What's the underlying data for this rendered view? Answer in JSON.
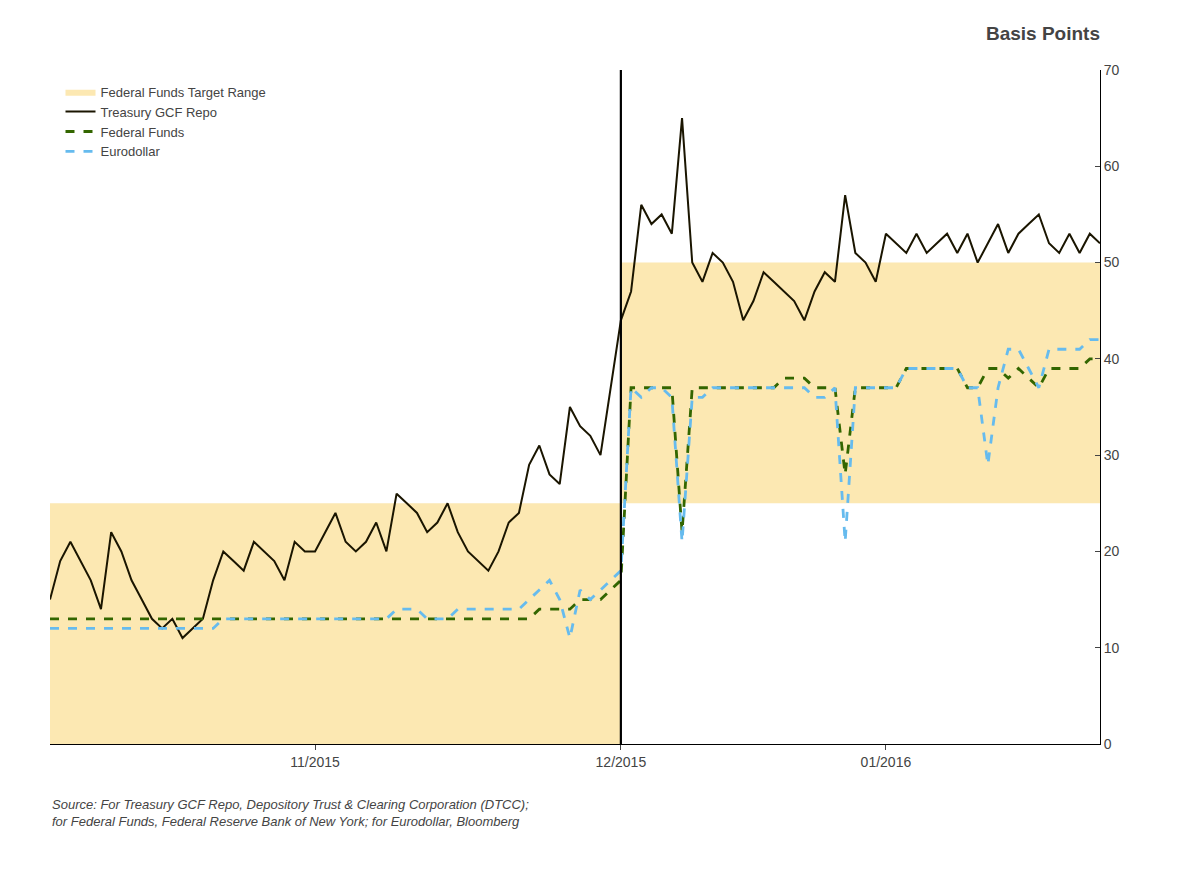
{
  "chart_data": {
    "type": "line",
    "title": "Basis Points",
    "annotations": [
      "Source: For Treasury GCF Repo, Depository Trust & Clearing Corporation (DTCC);\nfor Federal Funds, Federal Reserve Bank of New York; for Eurodollar, Bloomberg"
    ],
    "categories": [
      null,
      null,
      null,
      null,
      null,
      null,
      null,
      null,
      null,
      null,
      null,
      null,
      null,
      null,
      null,
      null,
      null,
      null,
      null,
      null,
      null,
      null,
      null,
      null,
      null,
      null,
      "11/2015",
      null,
      null,
      null,
      null,
      null,
      null,
      null,
      null,
      null,
      null,
      null,
      null,
      null,
      null,
      null,
      null,
      null,
      null,
      null,
      null,
      null,
      null,
      null,
      null,
      null,
      null,
      null,
      null,
      null,
      "12/2015",
      null,
      null,
      null,
      null,
      null,
      null,
      null,
      null,
      null,
      null,
      null,
      null,
      null,
      null,
      null,
      null,
      null,
      null,
      null,
      null,
      null,
      null,
      null,
      null,
      null,
      "01/2016",
      null,
      null,
      null,
      null,
      null,
      null,
      null,
      null,
      null,
      null,
      null,
      null,
      null,
      null,
      null,
      null,
      null,
      null,
      null,
      null,
      null
    ],
    "series": [
      {
        "name": "Federal Funds Target Range",
        "type": "band",
        "color": "#fce8b2",
        "lower": [
          0,
          0,
          0,
          0,
          0,
          0,
          0,
          0,
          0,
          0,
          0,
          0,
          0,
          0,
          0,
          0,
          0,
          0,
          0,
          0,
          0,
          0,
          0,
          0,
          0,
          0,
          0,
          0,
          0,
          0,
          0,
          0,
          0,
          0,
          0,
          0,
          0,
          0,
          0,
          0,
          0,
          0,
          0,
          0,
          0,
          0,
          0,
          0,
          0,
          0,
          0,
          0,
          0,
          0,
          0,
          0,
          25,
          25,
          25,
          25,
          25,
          25,
          25,
          25,
          25,
          25,
          25,
          25,
          25,
          25,
          25,
          25,
          25,
          25,
          25,
          25,
          25,
          25,
          25,
          25,
          25,
          25,
          25,
          25,
          25,
          25,
          25,
          25,
          25,
          25,
          25,
          25,
          25,
          25,
          25,
          25,
          25,
          25,
          25,
          25,
          25,
          25,
          25,
          25
        ],
        "upper": [
          25,
          25,
          25,
          25,
          25,
          25,
          25,
          25,
          25,
          25,
          25,
          25,
          25,
          25,
          25,
          25,
          25,
          25,
          25,
          25,
          25,
          25,
          25,
          25,
          25,
          25,
          25,
          25,
          25,
          25,
          25,
          25,
          25,
          25,
          25,
          25,
          25,
          25,
          25,
          25,
          25,
          25,
          25,
          25,
          25,
          25,
          25,
          25,
          25,
          25,
          25,
          25,
          25,
          25,
          25,
          25,
          50,
          50,
          50,
          50,
          50,
          50,
          50,
          50,
          50,
          50,
          50,
          50,
          50,
          50,
          50,
          50,
          50,
          50,
          50,
          50,
          50,
          50,
          50,
          50,
          50,
          50,
          50,
          50,
          50,
          50,
          50,
          50,
          50,
          50,
          50,
          50,
          50,
          50,
          50,
          50,
          50,
          50,
          50,
          50,
          50,
          50,
          50,
          50
        ]
      },
      {
        "name": "Treasury GCF Repo",
        "type": "line",
        "color": "#1a1500",
        "line_style": "solid",
        "values": [
          15,
          19,
          21,
          19,
          17,
          14,
          22,
          20,
          17,
          15,
          13,
          12,
          13,
          11,
          12,
          13,
          17,
          20,
          19,
          18,
          21,
          20,
          19,
          17,
          21,
          20,
          20,
          22,
          24,
          21,
          20,
          21,
          23,
          20,
          26,
          25,
          24,
          22,
          23,
          25,
          22,
          20,
          19,
          18,
          20,
          23,
          24,
          29,
          31,
          28,
          27,
          35,
          33,
          32,
          30,
          37,
          44,
          47,
          56,
          54,
          55,
          53,
          65,
          50,
          48,
          51,
          50,
          48,
          44,
          46,
          49,
          48,
          47,
          46,
          44,
          47,
          49,
          48,
          57,
          51,
          50,
          48,
          53,
          52,
          51,
          53,
          51,
          52,
          53,
          51,
          53,
          50,
          52,
          54,
          51,
          53,
          54,
          55,
          52,
          51,
          53,
          51,
          53,
          52
        ]
      },
      {
        "name": "Federal Funds",
        "type": "line",
        "color": "#336600",
        "line_style": "dashed",
        "values": [
          13,
          13,
          13,
          13,
          13,
          13,
          13,
          13,
          13,
          13,
          13,
          13,
          13,
          13,
          13,
          13,
          13,
          13,
          13,
          13,
          13,
          13,
          13,
          13,
          13,
          13,
          13,
          13,
          13,
          13,
          13,
          13,
          13,
          13,
          13,
          13,
          13,
          13,
          13,
          13,
          13,
          13,
          13,
          13,
          13,
          13,
          13,
          13,
          14,
          14,
          14,
          14,
          15,
          15,
          15,
          16,
          17,
          37,
          37,
          37,
          37,
          37,
          22,
          37,
          37,
          37,
          37,
          37,
          37,
          37,
          37,
          37,
          38,
          38,
          38,
          37,
          37,
          37,
          28,
          37,
          37,
          37,
          37,
          37,
          39,
          39,
          39,
          39,
          39,
          39,
          37,
          37,
          39,
          39,
          38,
          39,
          38,
          37,
          39,
          39,
          39,
          39,
          40,
          40
        ]
      },
      {
        "name": "Eurodollar",
        "type": "line",
        "color": "#66bbee",
        "line_style": "dashed",
        "values": [
          12,
          12,
          12,
          12,
          12,
          12,
          12,
          12,
          12,
          12,
          12,
          12,
          12,
          12,
          12,
          12,
          12,
          13,
          13,
          13,
          13,
          13,
          13,
          13,
          13,
          13,
          13,
          13,
          13,
          13,
          13,
          13,
          13,
          13,
          14,
          14,
          14,
          13,
          13,
          13,
          14,
          14,
          14,
          14,
          14,
          14,
          14,
          15,
          16,
          17,
          15,
          11,
          16,
          15,
          16,
          17,
          18,
          37,
          36,
          37,
          37,
          36,
          21,
          36,
          36,
          37,
          37,
          37,
          37,
          37,
          37,
          37,
          37,
          37,
          37,
          36,
          36,
          37,
          21,
          37,
          37,
          37,
          37,
          37,
          39,
          39,
          39,
          39,
          39,
          39,
          37,
          37,
          29,
          37,
          41,
          41,
          39,
          37,
          41,
          41,
          41,
          41,
          42,
          42
        ]
      }
    ],
    "vline": "12/2015",
    "ylim": [
      0,
      70
    ],
    "yticks": [
      0,
      10,
      20,
      30,
      40,
      50,
      60,
      70
    ],
    "grid": false,
    "legend": "upper left"
  }
}
